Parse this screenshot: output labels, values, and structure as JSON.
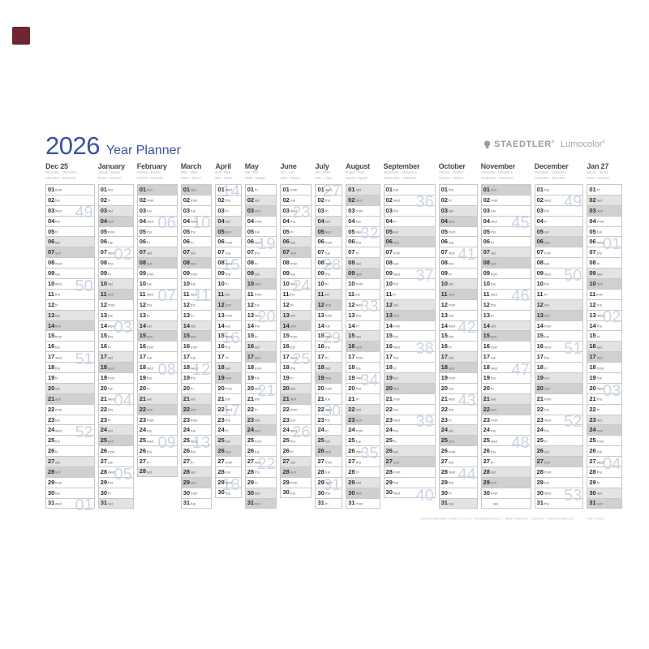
{
  "header": {
    "year": "2026",
    "title": "Year Planner",
    "brand": "STAEDTLER",
    "brand_reg": "®",
    "product": "Lumocolor",
    "product_reg": "®"
  },
  "weekday_labels": [
    "mon",
    "tue",
    "wed",
    "thu",
    "fri",
    "sat",
    "sun"
  ],
  "colors": {
    "title_blue": "#3b51a0",
    "saturday_bg": "#e3e3e3",
    "sunday_bg": "#d0d0d0",
    "week_number": "#cbd5e5",
    "grid_line": "#c8c8c8",
    "day_number": "#2e2e2e",
    "weekday_label": "#6a6a6a",
    "month_name": "#4b4b4b",
    "translation_text": "#a9a9a9",
    "brand_gray": "#9c9c9c",
    "corner_mark": "#6e2631"
  },
  "months": [
    {
      "label": "Dec 25",
      "trans1": "Dezember · Décembre",
      "trans2": "Diciembre · Dicembre",
      "days": 31,
      "start": 0,
      "weeks": [
        {
          "n": "49",
          "at": 3
        },
        {
          "n": "50",
          "at": 10
        },
        {
          "n": "51",
          "at": 17
        },
        {
          "n": "52",
          "at": 24
        },
        {
          "n": "01",
          "at": 31
        }
      ]
    },
    {
      "label": "January",
      "trans1": "Januar · Janvier",
      "trans2": "Enero · Gennaio",
      "days": 31,
      "start": 3,
      "weeks": [
        {
          "n": "02",
          "at": 7
        },
        {
          "n": "03",
          "at": 14
        },
        {
          "n": "04",
          "at": 21
        },
        {
          "n": "05",
          "at": 28
        }
      ]
    },
    {
      "label": "February",
      "trans1": "Februar · Février",
      "trans2": "Febrero · Febbraio",
      "days": 28,
      "start": 6,
      "weeks": [
        {
          "n": "06",
          "at": 4
        },
        {
          "n": "07",
          "at": 11
        },
        {
          "n": "08",
          "at": 18
        },
        {
          "n": "09",
          "at": 25
        }
      ]
    },
    {
      "label": "March",
      "trans1": "März · Mars",
      "trans2": "Marzo · Marzo",
      "days": 31,
      "start": 6,
      "weeks": [
        {
          "n": "10",
          "at": 4
        },
        {
          "n": "11",
          "at": 11
        },
        {
          "n": "12",
          "at": 18
        },
        {
          "n": "13",
          "at": 25
        }
      ]
    },
    {
      "label": "April",
      "trans1": "April · Avril",
      "trans2": "Abril · Aprile",
      "days": 30,
      "start": 2,
      "weeks": [
        {
          "n": "14",
          "at": 1
        },
        {
          "n": "15",
          "at": 8
        },
        {
          "n": "16",
          "at": 15
        },
        {
          "n": "17",
          "at": 22
        },
        {
          "n": "18",
          "at": 29
        }
      ]
    },
    {
      "label": "May",
      "trans1": "Mai · Mai",
      "trans2": "Mayo · Maggio",
      "days": 31,
      "start": 4,
      "weeks": [
        {
          "n": "19",
          "at": 6
        },
        {
          "n": "20",
          "at": 13
        },
        {
          "n": "21",
          "at": 20
        },
        {
          "n": "22",
          "at": 27
        }
      ]
    },
    {
      "label": "June",
      "trans1": "Juni · Juin",
      "trans2": "Junio · Giugno",
      "days": 30,
      "start": 0,
      "weeks": [
        {
          "n": "23",
          "at": 3
        },
        {
          "n": "24",
          "at": 10
        },
        {
          "n": "25",
          "at": 17
        },
        {
          "n": "26",
          "at": 24
        }
      ]
    },
    {
      "label": "July",
      "trans1": "Juli · Juillet",
      "trans2": "Julio · Luglio",
      "days": 31,
      "start": 2,
      "weeks": [
        {
          "n": "27",
          "at": 1
        },
        {
          "n": "28",
          "at": 8
        },
        {
          "n": "29",
          "at": 15
        },
        {
          "n": "30",
          "at": 22
        },
        {
          "n": "31",
          "at": 29
        }
      ]
    },
    {
      "label": "August",
      "trans1": "August · Août",
      "trans2": "Agosto · Agosto",
      "days": 31,
      "start": 5,
      "weeks": [
        {
          "n": "32",
          "at": 5
        },
        {
          "n": "33",
          "at": 12
        },
        {
          "n": "34",
          "at": 19
        },
        {
          "n": "35",
          "at": 26
        }
      ]
    },
    {
      "label": "September",
      "trans1": "September · Septembre",
      "trans2": "Septiembre · Settembre",
      "days": 30,
      "start": 1,
      "weeks": [
        {
          "n": "36",
          "at": 2
        },
        {
          "n": "37",
          "at": 9
        },
        {
          "n": "38",
          "at": 16
        },
        {
          "n": "39",
          "at": 23
        },
        {
          "n": "40",
          "at": 30
        }
      ]
    },
    {
      "label": "October",
      "trans1": "Oktober · Octobre",
      "trans2": "Octubre · Ottobre",
      "days": 31,
      "start": 3,
      "weeks": [
        {
          "n": "41",
          "at": 7
        },
        {
          "n": "42",
          "at": 14
        },
        {
          "n": "43",
          "at": 21
        },
        {
          "n": "44",
          "at": 28
        }
      ]
    },
    {
      "label": "November",
      "trans1": "November · Novembre",
      "trans2": "Noviembre · Novembre",
      "days": 30,
      "start": 6,
      "weeks": [
        {
          "n": "45",
          "at": 4
        },
        {
          "n": "46",
          "at": 11
        },
        {
          "n": "47",
          "at": 18
        },
        {
          "n": "48",
          "at": 25
        }
      ],
      "ghost": {
        "row": 31,
        "wd": "sat"
      }
    },
    {
      "label": "December",
      "trans1": "Dezember · Décembre",
      "trans2": "Diciembre · Dicembre",
      "days": 31,
      "start": 1,
      "weeks": [
        {
          "n": "49",
          "at": 2
        },
        {
          "n": "50",
          "at": 9
        },
        {
          "n": "51",
          "at": 16
        },
        {
          "n": "52",
          "at": 23
        },
        {
          "n": "53",
          "at": 30
        }
      ]
    },
    {
      "label": "Jan 27",
      "trans1": "Januar · Janvier",
      "trans2": "Enero · Gennaio",
      "days": 31,
      "start": 4,
      "weeks": [
        {
          "n": "01",
          "at": 6
        },
        {
          "n": "02",
          "at": 13
        },
        {
          "n": "03",
          "at": 20
        },
        {
          "n": "04",
          "at": 27
        }
      ]
    }
  ],
  "footer": {
    "imprint": "STAEDTLER Mars GmbH & Co. KG · Moosäckerstraße 3 · 90427 Nürnberg · Germany · www.staedtler.com",
    "code": "641 P 2026"
  }
}
